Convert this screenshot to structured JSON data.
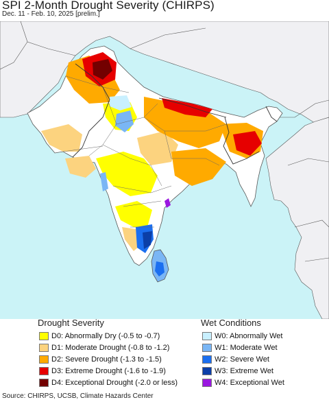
{
  "title": "SPI 2-Month Drought Severity (CHIRPS)",
  "subtitle": "Dec. 11 - Feb. 10, 2025 [prelim.]",
  "map": {
    "colors": {
      "ocean": "#cbf3f7",
      "outside_land": "#f0f0f3",
      "no_drought": "#ffffff",
      "D0": "#ffff00",
      "D1": "#fcd37f",
      "D2": "#ffaa00",
      "D3": "#e60000",
      "D4": "#730000",
      "W0": "#c9f0ff",
      "W1": "#7ab6f5",
      "W2": "#1b6ff0",
      "W3": "#0b3fa8",
      "W4": "#9a17e0",
      "border": "#555555"
    }
  },
  "legend": {
    "drought": {
      "title": "Drought Severity",
      "items": [
        {
          "code": "D0",
          "label": "D0: Abnormally Dry (-0.5 to -0.7)",
          "color": "#ffff00"
        },
        {
          "code": "D1",
          "label": "D1: Moderate Drought (-0.8 to -1.2)",
          "color": "#fcd37f"
        },
        {
          "code": "D2",
          "label": "D2: Severe Drought (-1.3 to -1.5)",
          "color": "#ffaa00"
        },
        {
          "code": "D3",
          "label": "D3: Extreme Drought (-1.6 to -1.9)",
          "color": "#e60000"
        },
        {
          "code": "D4",
          "label": "D4: Exceptional Drought (-2.0 or less)",
          "color": "#730000"
        }
      ]
    },
    "wet": {
      "title": "Wet Conditions",
      "items": [
        {
          "code": "W0",
          "label": "W0: Abnormally Wet",
          "color": "#c9f0ff"
        },
        {
          "code": "W1",
          "label": "W1: Moderate Wet",
          "color": "#7ab6f5"
        },
        {
          "code": "W2",
          "label": "W2: Severe Wet",
          "color": "#1b6ff0"
        },
        {
          "code": "W3",
          "label": "W3: Extreme Wet",
          "color": "#0b3fa8"
        },
        {
          "code": "W4",
          "label": "W4: Exceptional Wet",
          "color": "#9a17e0"
        }
      ]
    }
  },
  "source": "Source: CHIRPS, UCSB, Climate Hazards Center"
}
